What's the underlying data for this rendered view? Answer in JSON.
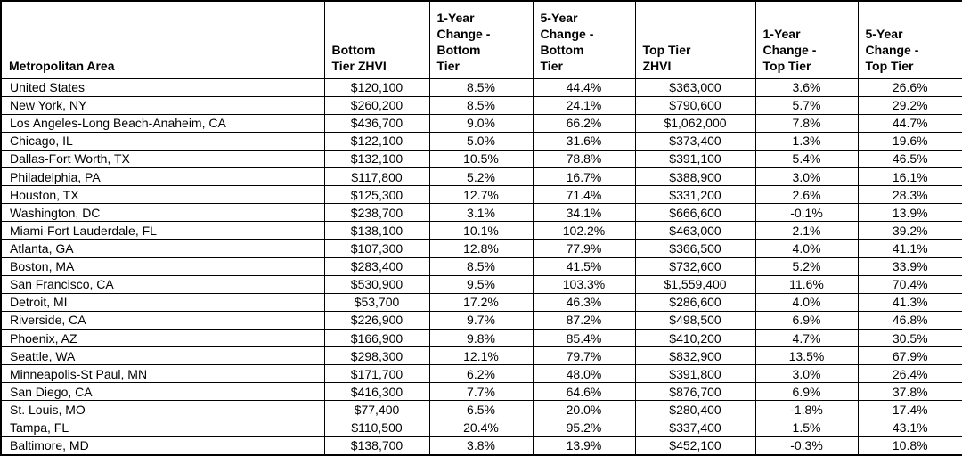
{
  "chart_data": {
    "type": "table",
    "columns": [
      "Metropolitan Area",
      "Bottom\nTier ZHVI",
      "1-Year\nChange -\nBottom\nTier",
      "5-Year\nChange -\nBottom\nTier",
      "Top Tier\nZHVI",
      "1-Year\nChange -\nTop Tier",
      "5-Year\nChange -\nTop Tier"
    ],
    "rows": [
      [
        "United States",
        "$120,100",
        "8.5%",
        "44.4%",
        "$363,000",
        "3.6%",
        "26.6%"
      ],
      [
        "New York, NY",
        "$260,200",
        "8.5%",
        "24.1%",
        "$790,600",
        "5.7%",
        "29.2%"
      ],
      [
        "Los Angeles-Long Beach-Anaheim, CA",
        "$436,700",
        "9.0%",
        "66.2%",
        "$1,062,000",
        "7.8%",
        "44.7%"
      ],
      [
        "Chicago, IL",
        "$122,100",
        "5.0%",
        "31.6%",
        "$373,400",
        "1.3%",
        "19.6%"
      ],
      [
        "Dallas-Fort Worth, TX",
        "$132,100",
        "10.5%",
        "78.8%",
        "$391,100",
        "5.4%",
        "46.5%"
      ],
      [
        "Philadelphia, PA",
        "$117,800",
        "5.2%",
        "16.7%",
        "$388,900",
        "3.0%",
        "16.1%"
      ],
      [
        "Houston, TX",
        "$125,300",
        "12.7%",
        "71.4%",
        "$331,200",
        "2.6%",
        "28.3%"
      ],
      [
        "Washington, DC",
        "$238,700",
        "3.1%",
        "34.1%",
        "$666,600",
        "-0.1%",
        "13.9%"
      ],
      [
        "Miami-Fort Lauderdale, FL",
        "$138,100",
        "10.1%",
        "102.2%",
        "$463,000",
        "2.1%",
        "39.2%"
      ],
      [
        "Atlanta, GA",
        "$107,300",
        "12.8%",
        "77.9%",
        "$366,500",
        "4.0%",
        "41.1%"
      ],
      [
        "Boston, MA",
        "$283,400",
        "8.5%",
        "41.5%",
        "$732,600",
        "5.2%",
        "33.9%"
      ],
      [
        "San Francisco, CA",
        "$530,900",
        "9.5%",
        "103.3%",
        "$1,559,400",
        "11.6%",
        "70.4%"
      ],
      [
        "Detroit, MI",
        "$53,700",
        "17.2%",
        "46.3%",
        "$286,600",
        "4.0%",
        "41.3%"
      ],
      [
        "Riverside, CA",
        "$226,900",
        "9.7%",
        "87.2%",
        "$498,500",
        "6.9%",
        "46.8%"
      ],
      [
        "Phoenix, AZ",
        "$166,900",
        "9.8%",
        "85.4%",
        "$410,200",
        "4.7%",
        "30.5%"
      ],
      [
        "Seattle, WA",
        "$298,300",
        "12.1%",
        "79.7%",
        "$832,900",
        "13.5%",
        "67.9%"
      ],
      [
        "Minneapolis-St Paul, MN",
        "$171,700",
        "6.2%",
        "48.0%",
        "$391,800",
        "3.0%",
        "26.4%"
      ],
      [
        "San Diego, CA",
        "$416,300",
        "7.7%",
        "64.6%",
        "$876,700",
        "6.9%",
        "37.8%"
      ],
      [
        "St. Louis, MO",
        "$77,400",
        "6.5%",
        "20.0%",
        "$280,400",
        "-1.8%",
        "17.4%"
      ],
      [
        "Tampa, FL",
        "$110,500",
        "20.4%",
        "95.2%",
        "$337,400",
        "1.5%",
        "43.1%"
      ],
      [
        "Baltimore, MD",
        "$138,700",
        "3.8%",
        "13.9%",
        "$452,100",
        "-0.3%",
        "10.8%"
      ]
    ]
  },
  "colors": {
    "text": "#000000",
    "border": "#000000",
    "background": "#ffffff"
  }
}
